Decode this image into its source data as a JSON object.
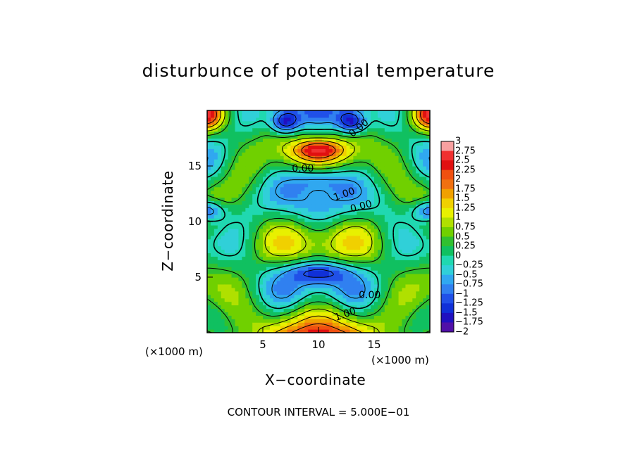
{
  "chart_data": {
    "type": "heatmap",
    "title": "disturbunce of potential temperature",
    "xlabel": "X−coordinate",
    "ylabel": "Z−coordinate",
    "x_unit": "(×1000 m)",
    "xlim": [
      0,
      20
    ],
    "ylim": [
      0,
      20
    ],
    "x_ticks": [
      5,
      10,
      15
    ],
    "y_ticks": [
      5,
      10,
      15
    ],
    "colorbar": {
      "ticks": [
        3,
        2.75,
        2.5,
        2.25,
        2,
        1.75,
        1.5,
        1.25,
        1,
        0.75,
        0.5,
        0.25,
        0,
        -0.25,
        -0.5,
        -0.75,
        -1,
        -1.25,
        -1.5,
        -1.75,
        -2
      ],
      "tick_labels": [
        "3",
        "2.75",
        "2.5",
        "2.25",
        "2",
        "1.75",
        "1.5",
        "1.25",
        "1",
        "0.75",
        "0.5",
        "0.25",
        "0",
        "−0.25",
        "−0.5",
        "−0.75",
        "−1",
        "−1.25",
        "−1.5",
        "−1.75",
        "−2"
      ],
      "colors": [
        "#f8a0a0",
        "#f03030",
        "#e01010",
        "#f05010",
        "#f07010",
        "#f0a000",
        "#f0d000",
        "#e8f000",
        "#b0e000",
        "#70d000",
        "#30c030",
        "#10c060",
        "#20d8b0",
        "#30d0d8",
        "#30a8f0",
        "#3080f0",
        "#2050e8",
        "#1030d8",
        "#2010c0",
        "#5010a8",
        "#7020a0"
      ]
    },
    "contour_labels": [
      "0.00",
      "0.00",
      "1.00",
      "0.00",
      "0.00",
      "1.00"
    ],
    "contour_interval_text": "CONTOUR INTERVAL = 5.000E−01"
  }
}
